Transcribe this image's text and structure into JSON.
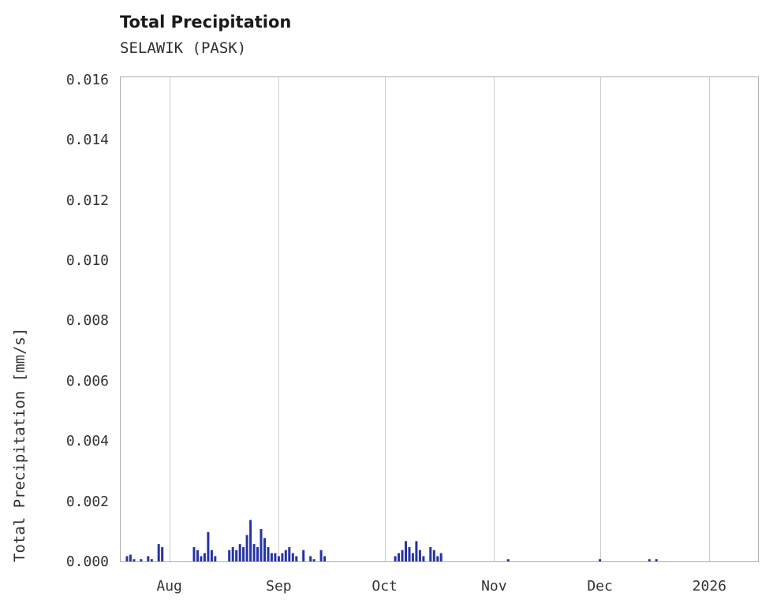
{
  "header": {
    "title": "Total Precipitation",
    "subtitle": "SELAWIK (PASK)"
  },
  "chart_data": {
    "type": "bar",
    "title": "Total Precipitation",
    "subtitle": "SELAWIK (PASK)",
    "xlabel": "",
    "ylabel": "Total Precipitation [mm/s]",
    "ylim": [
      0,
      0.01613
    ],
    "grid": "vertical",
    "legend": "none",
    "bar_color": "#2533a6",
    "grid_color": "#cccccc",
    "border_color": "#adadad",
    "x_range": [
      "2025-07-18",
      "2026-01-15"
    ],
    "x_ticks": [
      {
        "date": "2025-08-01",
        "label": "Aug"
      },
      {
        "date": "2025-09-01",
        "label": "Sep"
      },
      {
        "date": "2025-10-01",
        "label": "Oct"
      },
      {
        "date": "2025-11-01",
        "label": "Nov"
      },
      {
        "date": "2025-12-01",
        "label": "Dec"
      },
      {
        "date": "2026-01-01",
        "label": "2026"
      }
    ],
    "y_ticks": [
      {
        "value": 0.0,
        "label": "0.000"
      },
      {
        "value": 0.002,
        "label": "0.002"
      },
      {
        "value": 0.004,
        "label": "0.004"
      },
      {
        "value": 0.006,
        "label": "0.006"
      },
      {
        "value": 0.008,
        "label": "0.008"
      },
      {
        "value": 0.01,
        "label": "0.010"
      },
      {
        "value": 0.012,
        "label": "0.012"
      },
      {
        "value": 0.014,
        "label": "0.014"
      },
      {
        "value": 0.016,
        "label": "0.016"
      }
    ],
    "points": [
      [
        "2025-07-20",
        0.0002
      ],
      [
        "2025-07-21",
        0.00025
      ],
      [
        "2025-07-22",
        0.0001
      ],
      [
        "2025-07-24",
        0.0001
      ],
      [
        "2025-07-26",
        0.0002
      ],
      [
        "2025-07-27",
        0.0001
      ],
      [
        "2025-07-29",
        0.0006
      ],
      [
        "2025-07-30",
        0.0005
      ],
      [
        "2025-08-08",
        0.0005
      ],
      [
        "2025-08-09",
        0.0004
      ],
      [
        "2025-08-10",
        0.0002
      ],
      [
        "2025-08-11",
        0.0003
      ],
      [
        "2025-08-12",
        0.001
      ],
      [
        "2025-08-13",
        0.0004
      ],
      [
        "2025-08-14",
        0.0002
      ],
      [
        "2025-08-18",
        0.0004
      ],
      [
        "2025-08-19",
        0.0005
      ],
      [
        "2025-08-20",
        0.0004
      ],
      [
        "2025-08-21",
        0.0006
      ],
      [
        "2025-08-22",
        0.0005
      ],
      [
        "2025-08-23",
        0.0009
      ],
      [
        "2025-08-24",
        0.0014
      ],
      [
        "2025-08-25",
        0.0006
      ],
      [
        "2025-08-26",
        0.0005
      ],
      [
        "2025-08-27",
        0.0011
      ],
      [
        "2025-08-28",
        0.0008
      ],
      [
        "2025-08-29",
        0.0005
      ],
      [
        "2025-08-30",
        0.0003
      ],
      [
        "2025-08-31",
        0.0003
      ],
      [
        "2025-09-01",
        0.0002
      ],
      [
        "2025-09-02",
        0.0003
      ],
      [
        "2025-09-03",
        0.0004
      ],
      [
        "2025-09-04",
        0.0005
      ],
      [
        "2025-09-05",
        0.0003
      ],
      [
        "2025-09-06",
        0.0002
      ],
      [
        "2025-09-08",
        0.0004
      ],
      [
        "2025-09-10",
        0.0002
      ],
      [
        "2025-09-11",
        0.0001
      ],
      [
        "2025-09-13",
        0.0004
      ],
      [
        "2025-09-14",
        0.0002
      ],
      [
        "2025-10-04",
        0.0002
      ],
      [
        "2025-10-05",
        0.0003
      ],
      [
        "2025-10-06",
        0.0004
      ],
      [
        "2025-10-07",
        0.0007
      ],
      [
        "2025-10-08",
        0.0005
      ],
      [
        "2025-10-09",
        0.0003
      ],
      [
        "2025-10-10",
        0.0007
      ],
      [
        "2025-10-11",
        0.0004
      ],
      [
        "2025-10-12",
        0.0002
      ],
      [
        "2025-10-14",
        0.0005
      ],
      [
        "2025-10-15",
        0.0004
      ],
      [
        "2025-10-16",
        0.0002
      ],
      [
        "2025-10-17",
        0.0003
      ],
      [
        "2025-11-05",
        0.0001
      ],
      [
        "2025-12-01",
        0.0001
      ],
      [
        "2025-12-15",
        0.0001
      ],
      [
        "2025-12-17",
        0.0001
      ]
    ]
  }
}
